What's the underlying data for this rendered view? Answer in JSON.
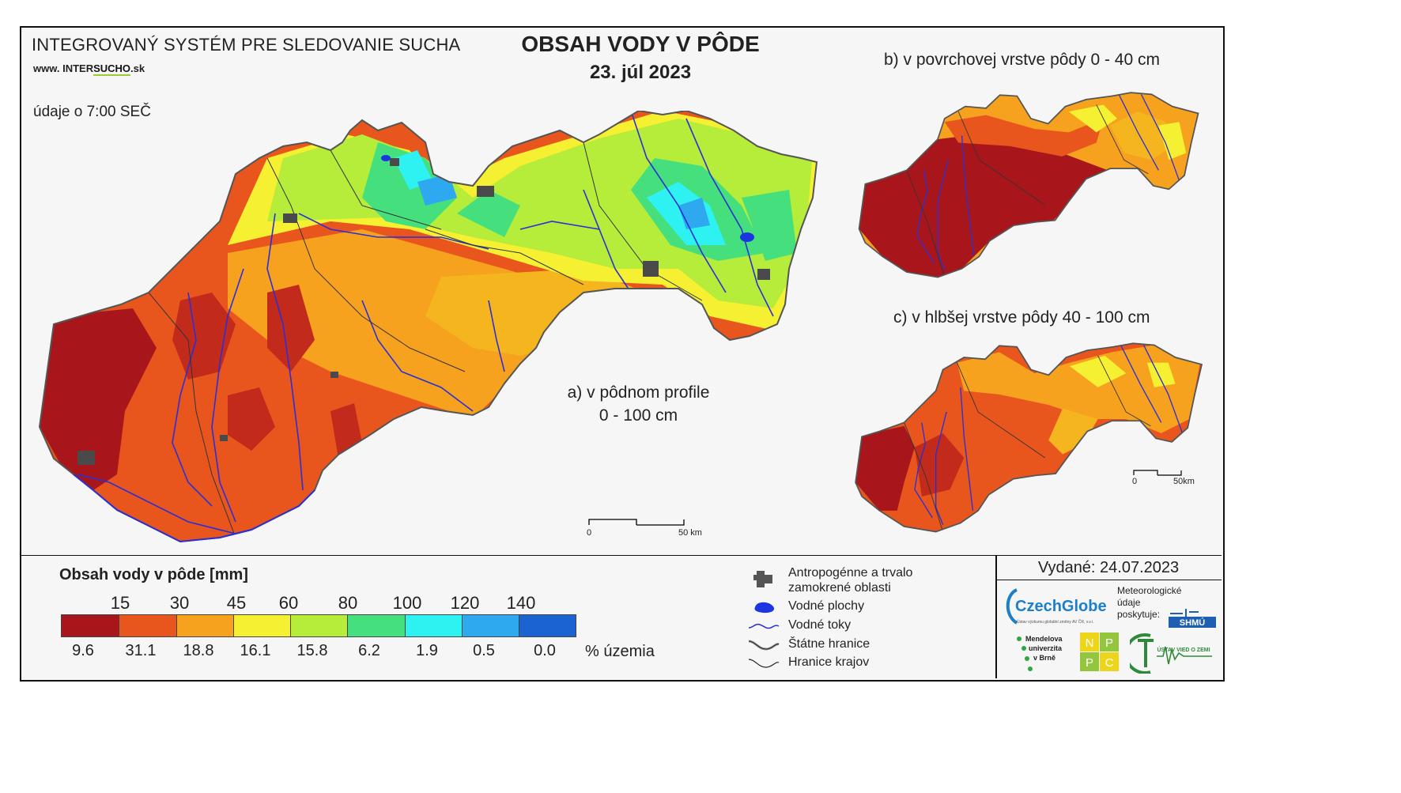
{
  "header": {
    "system_name": "INTEGROVANÝ SYSTÉM PRE SLEDOVANIE SUCHA",
    "website_prefix": "www.",
    "website_inter": "INTER",
    "website_sucho": "SUCHO",
    "website_suffix": ".sk",
    "data_time": "údaje o 7:00 SEČ"
  },
  "title": {
    "main": "OBSAH VODY V PÔDE",
    "date": "23. júl 2023"
  },
  "maps": {
    "a_label_line1": "a) v pôdnom profile",
    "a_label_line2": "0 - 100 cm",
    "b_label": "b) v povrchovej vrstve pôdy 0 - 40 cm",
    "c_label": "c) v hlbšej vrstve pôdy 40 - 100 cm",
    "scale_a_start": "0",
    "scale_a_end": "50 km",
    "scale_c_start": "0",
    "scale_c_end": "50km"
  },
  "legend": {
    "title": "Obsah vody v pôde  [mm]",
    "thresholds": [
      "15",
      "30",
      "45",
      "60",
      "80",
      "100",
      "120",
      "140"
    ],
    "classes": [
      {
        "color": "#a8161b",
        "pct": "9.6"
      },
      {
        "color": "#e8561e",
        "pct": "31.1"
      },
      {
        "color": "#f7a21e",
        "pct": "18.8"
      },
      {
        "color": "#f6f032",
        "pct": "16.1"
      },
      {
        "color": "#b6ec3a",
        "pct": "15.8"
      },
      {
        "color": "#45e07d",
        "pct": "6.2"
      },
      {
        "color": "#2ef1f1",
        "pct": "1.9"
      },
      {
        "color": "#2ea8ee",
        "pct": "0.5"
      },
      {
        "color": "#1b63d1",
        "pct": "0.0"
      }
    ],
    "pct_unit": "% územia",
    "symbols": {
      "anthropogenic_line1": "Antropogénne a trvalo",
      "anthropogenic_line2": "zamokrené oblasti",
      "water_bodies": "Vodné plochy",
      "water_streams": "Vodné toky",
      "state_border": "Štátne hranice",
      "region_border": "Hranice krajov"
    }
  },
  "issued": {
    "label": "Vydané: 24.07.2023",
    "czechglobe": "CzechGlobe",
    "czechglobe_sub": "Ústav výzkumu globální změny AV ČR, v.v.i.",
    "meteo_line1": "Meteorologické",
    "meteo_line2": "údaje",
    "meteo_line3": "poskytuje:",
    "shmu": "SHMÚ",
    "mendel_line1": "Mendelova",
    "mendel_line2": "univerzita",
    "mendel_line3": "v Brně",
    "nppc_n": "N",
    "nppc_p1": "P",
    "nppc_p2": "P",
    "nppc_c": "C",
    "uvz": "ÚSTAV VIED O ZEMI"
  }
}
